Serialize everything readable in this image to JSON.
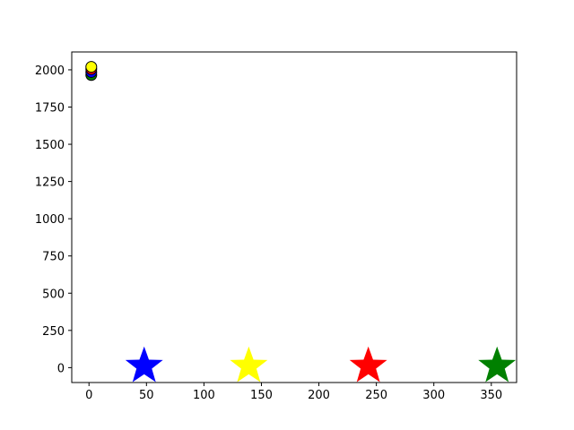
{
  "chart_data": {
    "type": "scatter",
    "title": "",
    "xlabel": "",
    "ylabel": "",
    "xlim": [
      -15,
      372
    ],
    "ylim": [
      -100,
      2120
    ],
    "xticks": [
      0,
      50,
      100,
      150,
      200,
      250,
      300,
      350
    ],
    "yticks": [
      0,
      250,
      500,
      750,
      1000,
      1250,
      1500,
      1750,
      2000
    ],
    "grid": false,
    "legend": "none",
    "series": [
      {
        "marker": "circle",
        "edge_color": "#000000",
        "points": [
          {
            "x": 2,
            "y": 1965,
            "color": "#008000"
          },
          {
            "x": 2,
            "y": 1985,
            "color": "#0000ff"
          },
          {
            "x": 2,
            "y": 2005,
            "color": "#ff0000"
          },
          {
            "x": 2,
            "y": 2020,
            "color": "#ffff00"
          }
        ]
      },
      {
        "marker": "star",
        "points": [
          {
            "x": 48,
            "y": 10,
            "color": "#0000ff"
          },
          {
            "x": 139,
            "y": 10,
            "color": "#ffff00"
          },
          {
            "x": 243,
            "y": 10,
            "color": "#ff0000"
          },
          {
            "x": 355,
            "y": 10,
            "color": "#008000"
          }
        ]
      }
    ]
  }
}
